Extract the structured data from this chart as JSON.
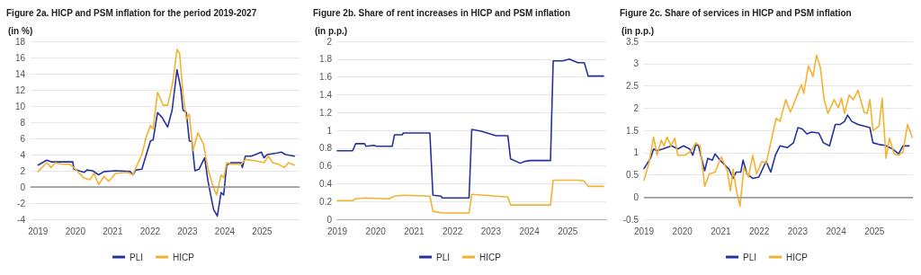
{
  "chart_data": [
    {
      "type": "line",
      "title": "Figure 2a. HICP and PSM inflation for the period 2019-2027",
      "ylabel": "(in %)",
      "xlim": [
        2018.8,
        2026
      ],
      "xticks": [
        2019,
        2020,
        2021,
        2022,
        2023,
        2024,
        2025
      ],
      "ylim": [
        -4,
        18
      ],
      "yticks": [
        -4,
        -2,
        0,
        2,
        4,
        6,
        8,
        10,
        12,
        14,
        16,
        18
      ],
      "grid": "y",
      "legend": "bottom",
      "marker": "none",
      "line_style": "solid",
      "ref_lines": [
        {
          "axis": "y",
          "value": 0,
          "label": null,
          "color": "#999999"
        }
      ],
      "series": [
        {
          "name": "PLI",
          "color": "#26329c",
          "x": [
            2019.0,
            2019.23,
            2019.35,
            2019.54,
            2019.93,
            2019.96,
            2020.23,
            2020.31,
            2020.46,
            2020.62,
            2020.77,
            2021.08,
            2021.47,
            2021.54,
            2021.62,
            2021.78,
            2022.01,
            2022.08,
            2022.2,
            2022.32,
            2022.47,
            2022.59,
            2022.72,
            2022.82,
            2022.88,
            2022.97,
            2023.05,
            2023.12,
            2023.2,
            2023.31,
            2023.46,
            2023.55,
            2023.7,
            2023.8,
            2023.9,
            2023.97,
            2024.05,
            2024.17,
            2024.44,
            2024.47,
            2024.55,
            2024.71,
            2024.98,
            2025.05,
            2025.13,
            2025.4,
            2025.51,
            2025.63,
            2025.86
          ],
          "values": [
            2.7,
            3.3,
            3.1,
            3.1,
            3.1,
            2.2,
            1.8,
            2.1,
            2.0,
            1.5,
            1.9,
            2.0,
            1.9,
            1.5,
            2.1,
            2.2,
            5.7,
            5.8,
            9.2,
            8.6,
            7.4,
            9.5,
            14.5,
            12.2,
            9.5,
            9.2,
            5.7,
            5.6,
            2.0,
            2.2,
            3.6,
            0.7,
            -2.8,
            -3.6,
            -0.7,
            -1.0,
            2.7,
            3.0,
            3.0,
            2.4,
            3.8,
            3.8,
            4.3,
            3.6,
            4.0,
            4.2,
            4.3,
            4.0,
            3.8
          ]
        },
        {
          "name": "HICP",
          "color": "#f2b233",
          "x": [
            2019.0,
            2019.23,
            2019.35,
            2019.46,
            2019.66,
            2019.85,
            2020.0,
            2020.23,
            2020.39,
            2020.5,
            2020.62,
            2020.77,
            2020.89,
            2021.08,
            2021.39,
            2021.54,
            2021.66,
            2021.78,
            2021.89,
            2022.01,
            2022.08,
            2022.2,
            2022.35,
            2022.47,
            2022.61,
            2022.72,
            2022.79,
            2022.88,
            2022.97,
            2023.05,
            2023.15,
            2023.28,
            2023.43,
            2023.55,
            2023.7,
            2023.78,
            2023.9,
            2023.97,
            2024.05,
            2024.17,
            2024.44,
            2024.55,
            2024.86,
            2025.05,
            2025.17,
            2025.28,
            2025.44,
            2025.59,
            2025.71,
            2025.86
          ],
          "values": [
            1.9,
            3.0,
            2.4,
            3.0,
            2.8,
            2.8,
            2.2,
            1.1,
            0.9,
            1.7,
            0.3,
            1.3,
            0.7,
            1.7,
            1.8,
            1.5,
            2.8,
            4.0,
            6.1,
            7.6,
            7.2,
            11.7,
            10.1,
            10.1,
            13.0,
            17.0,
            16.5,
            11.5,
            8.4,
            9.0,
            4.5,
            6.7,
            5.3,
            2.2,
            -0.1,
            -1.0,
            1.5,
            1.1,
            3.0,
            2.8,
            2.8,
            3.4,
            3.2,
            3.0,
            3.8,
            3.0,
            2.8,
            2.4,
            3.0,
            2.7
          ]
        }
      ]
    },
    {
      "type": "line",
      "title": "Figure 2b. Share of rent increases in HICP and PSM inflation",
      "ylabel": "(in p.p.)",
      "xlim": [
        2019,
        2026
      ],
      "xticks": [
        2019,
        2020,
        2021,
        2022,
        2023,
        2024,
        2025
      ],
      "ylim": [
        0,
        2
      ],
      "yticks": [
        0,
        0.2,
        0.4,
        0.6,
        0.8,
        1,
        1.2,
        1.4,
        1.6,
        1.8,
        2
      ],
      "grid": "y",
      "legend": "bottom",
      "marker": "none",
      "line_style": "solid",
      "series": [
        {
          "name": "PLI",
          "color": "#26329c",
          "x": [
            2019.0,
            2019.4,
            2019.48,
            2019.71,
            2019.75,
            2019.95,
            2020.03,
            2020.43,
            2020.49,
            2020.69,
            2020.72,
            2021.11,
            2021.41,
            2021.49,
            2021.7,
            2021.73,
            2022.43,
            2022.5,
            2022.75,
            2022.9,
            2023.13,
            2023.44,
            2023.51,
            2023.76,
            2023.87,
            2024.03,
            2024.55,
            2024.62,
            2024.87,
            2025.04,
            2025.26,
            2025.43,
            2025.53,
            2025.93
          ],
          "values": [
            0.77,
            0.77,
            0.85,
            0.85,
            0.82,
            0.83,
            0.82,
            0.82,
            0.95,
            0.95,
            0.97,
            0.97,
            0.97,
            0.27,
            0.26,
            0.24,
            0.24,
            1.01,
            0.99,
            0.97,
            0.94,
            0.94,
            0.68,
            0.63,
            0.65,
            0.66,
            0.66,
            1.78,
            1.78,
            1.8,
            1.76,
            1.76,
            1.61,
            1.61
          ]
        },
        {
          "name": "HICP",
          "color": "#f2b233",
          "x": [
            2019.0,
            2019.4,
            2019.48,
            2019.71,
            2020.34,
            2020.49,
            2020.72,
            2021.41,
            2021.49,
            2021.73,
            2022.43,
            2022.5,
            2023.13,
            2023.44,
            2023.51,
            2023.76,
            2024.55,
            2024.62,
            2025.3,
            2025.43,
            2025.53,
            2025.93
          ],
          "values": [
            0.21,
            0.21,
            0.23,
            0.24,
            0.23,
            0.26,
            0.27,
            0.26,
            0.09,
            0.07,
            0.07,
            0.28,
            0.26,
            0.25,
            0.16,
            0.16,
            0.16,
            0.44,
            0.44,
            0.43,
            0.37,
            0.37
          ]
        }
      ]
    },
    {
      "type": "line",
      "title": "Figure 2c. Share of services in HICP and PSM inflation",
      "ylabel": "(in p.p.)",
      "xlim": [
        2019,
        2026
      ],
      "xticks": [
        2019,
        2020,
        2021,
        2022,
        2023,
        2024,
        2025
      ],
      "ylim": [
        -0.5,
        3.5
      ],
      "yticks": [
        -0.5,
        0,
        0.5,
        1,
        1.5,
        2,
        2.5,
        3,
        3.5
      ],
      "grid": "y",
      "legend": "bottom",
      "marker": "none",
      "line_style": "solid",
      "ref_lines": [
        {
          "axis": "y",
          "value": 0,
          "label": null,
          "color": "#999999"
        }
      ],
      "series": [
        {
          "name": "PLI",
          "color": "#26329c",
          "x": [
            2019.0,
            2019.17,
            2019.25,
            2019.33,
            2019.49,
            2019.72,
            2019.88,
            2020.03,
            2020.19,
            2020.27,
            2020.35,
            2020.42,
            2020.58,
            2020.66,
            2020.78,
            2020.85,
            2021.01,
            2021.21,
            2021.32,
            2021.4,
            2021.52,
            2021.58,
            2021.68,
            2021.83,
            2021.99,
            2022.18,
            2022.3,
            2022.42,
            2022.54,
            2022.73,
            2022.89,
            2023.01,
            2023.12,
            2023.24,
            2023.36,
            2023.55,
            2023.67,
            2023.83,
            2023.98,
            2024.1,
            2024.22,
            2024.3,
            2024.41,
            2024.57,
            2024.88,
            2024.96,
            2025.12,
            2025.28,
            2025.47,
            2025.63,
            2025.74,
            2025.9
          ],
          "values": [
            0.64,
            0.87,
            1.08,
            1.04,
            1.08,
            1.15,
            1.08,
            1.15,
            1.08,
            0.94,
            1.18,
            1.15,
            0.59,
            0.87,
            0.83,
            0.97,
            0.8,
            0.63,
            0.42,
            0.56,
            0.56,
            0.83,
            0.52,
            0.42,
            0.45,
            0.8,
            0.56,
            0.94,
            1.15,
            1.11,
            1.22,
            1.56,
            1.53,
            1.42,
            1.46,
            1.44,
            1.22,
            1.15,
            1.63,
            1.63,
            1.7,
            1.84,
            1.7,
            1.63,
            1.56,
            1.22,
            1.18,
            1.16,
            1.08,
            0.97,
            1.15,
            1.15
          ]
        },
        {
          "name": "HICP",
          "color": "#f2b233",
          "x": [
            2019.0,
            2019.13,
            2019.25,
            2019.34,
            2019.45,
            2019.52,
            2019.6,
            2019.7,
            2019.8,
            2019.88,
            2020.07,
            2020.23,
            2020.35,
            2020.46,
            2020.58,
            2020.7,
            2020.85,
            2021.01,
            2021.17,
            2021.25,
            2021.32,
            2021.4,
            2021.5,
            2021.6,
            2021.72,
            2021.83,
            2021.93,
            2022.07,
            2022.18,
            2022.3,
            2022.44,
            2022.54,
            2022.69,
            2022.81,
            2023.01,
            2023.1,
            2023.16,
            2023.28,
            2023.4,
            2023.49,
            2023.59,
            2023.69,
            2023.79,
            2023.95,
            2024.06,
            2024.14,
            2024.22,
            2024.34,
            2024.45,
            2024.57,
            2024.73,
            2024.81,
            2024.88,
            2024.96,
            2025.12,
            2025.2,
            2025.3,
            2025.39,
            2025.51,
            2025.63,
            2025.74,
            2025.86,
            2025.98
          ],
          "values": [
            0.38,
            0.76,
            1.35,
            0.94,
            1.28,
            1.15,
            1.35,
            1.15,
            1.32,
            0.94,
            0.94,
            1.04,
            1.22,
            1.15,
            0.24,
            0.52,
            0.56,
            0.9,
            0.59,
            0.14,
            0.63,
            0.17,
            -0.21,
            0.66,
            0.45,
            0.94,
            0.52,
            0.8,
            0.76,
            1.22,
            1.77,
            1.7,
            2.19,
            1.91,
            2.33,
            2.53,
            2.33,
            2.95,
            2.71,
            3.19,
            2.92,
            2.19,
            1.88,
            2.19,
            2.01,
            2.22,
            1.88,
            2.29,
            2.19,
            2.4,
            1.91,
            1.88,
            2.19,
            1.49,
            1.6,
            2.22,
            0.87,
            1.32,
            0.97,
            0.94,
            1.01,
            1.63,
            1.35
          ]
        }
      ]
    }
  ]
}
